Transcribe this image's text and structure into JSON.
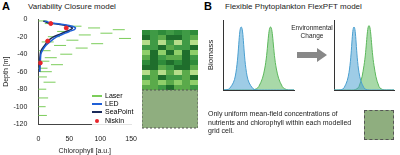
{
  "panels": [
    {
      "letter": "A",
      "title": "Variability Closure model"
    },
    {
      "letter": "B",
      "title": "Flexible Phytoplankton FlexPFT model"
    }
  ],
  "arrow_text": "Environmental Change",
  "caption": "Only uniform mean-field concentrations of nutrients and chlorophyll within each modelled grid cell.",
  "chart_data": [
    {
      "type": "scatter",
      "x_label": "Chlorophyll [a.u.]",
      "y_label": "Depth [m]",
      "xlim": [
        0,
        150
      ],
      "xticks": [
        0,
        50,
        100,
        150
      ],
      "ylim": [
        -120,
        0
      ],
      "yticks": [
        -120,
        -100,
        -80,
        -60,
        -40,
        -20,
        0
      ],
      "grid": false,
      "legend": "lower right",
      "series": [
        {
          "name": "Laser",
          "color": "#7ccd5a",
          "type": "scatter",
          "marker": "dash",
          "x": [
            5,
            20,
            60,
            90,
            130,
            40,
            110,
            75,
            25,
            140,
            55,
            15,
            95,
            35,
            70,
            10,
            45,
            20,
            8,
            30,
            5,
            12,
            4,
            18,
            3,
            6,
            2,
            4
          ],
          "y": [
            -2,
            -5,
            -8,
            -10,
            -12,
            -14,
            -16,
            -18,
            -20,
            -22,
            -24,
            -26,
            -28,
            -30,
            -33,
            -36,
            -40,
            -44,
            -48,
            -52,
            -56,
            -60,
            -66,
            -72,
            -80,
            -90,
            -100,
            -110
          ]
        },
        {
          "name": "LED",
          "color": "#1f5fd6",
          "type": "line",
          "line_style": "solid",
          "x": [
            10,
            20,
            40,
            55,
            60,
            58,
            50,
            40,
            30,
            20,
            12,
            7,
            4,
            3,
            2
          ],
          "y": [
            -2,
            -4,
            -6,
            -8,
            -10,
            -12,
            -14,
            -17,
            -20,
            -25,
            -30,
            -35,
            -40,
            -50,
            -60
          ]
        },
        {
          "name": "SeaPoint",
          "color": "#1a2a5a",
          "type": "line",
          "line_style": "solid",
          "x": [
            8,
            15,
            35,
            50,
            55,
            52,
            45,
            35,
            25,
            15,
            10,
            5,
            3,
            2,
            2
          ],
          "y": [
            -2,
            -4,
            -6,
            -8,
            -10,
            -12,
            -14,
            -17,
            -20,
            -25,
            -30,
            -35,
            -40,
            -50,
            -60
          ]
        },
        {
          "name": "Niskin",
          "color": "#e8242b",
          "type": "scatter",
          "marker": "circle",
          "x": [
            20,
            45,
            15,
            3
          ],
          "y": [
            -5,
            -10,
            -25,
            -50
          ]
        }
      ]
    },
    {
      "type": "line",
      "y_label": "Biomass",
      "tick_labels": false,
      "grid": false,
      "xlim": [
        0,
        12
      ],
      "ylim": [
        0,
        1
      ],
      "x": [
        0,
        1,
        2,
        3,
        4,
        5,
        6,
        7,
        8,
        9,
        10,
        11,
        12
      ],
      "series": [
        {
          "color": "#4a9fd0",
          "values": [
            0,
            0.02,
            0.2,
            0.9,
            0.2,
            0.02,
            0,
            0,
            0,
            0,
            0,
            0,
            0
          ]
        },
        {
          "color": "#5cb85c",
          "values": [
            0,
            0,
            0,
            0,
            0,
            0,
            0.05,
            0.3,
            0.9,
            0.3,
            0.05,
            0,
            0
          ]
        }
      ]
    },
    {
      "type": "line",
      "tick_labels": false,
      "grid": false,
      "xlim": [
        0,
        12
      ],
      "ylim": [
        0,
        1
      ],
      "x": [
        0,
        1,
        2,
        3,
        4,
        5,
        6,
        7,
        8,
        9,
        10,
        11,
        12
      ],
      "series": [
        {
          "color": "#4a9fd0",
          "values": [
            0,
            0,
            0.03,
            0.25,
            0.9,
            0.25,
            0.03,
            0,
            0,
            0,
            0,
            0,
            0
          ]
        },
        {
          "color": "#5cb85c",
          "values": [
            0,
            0,
            0,
            0,
            0,
            0.05,
            0.35,
            0.92,
            0.35,
            0.05,
            0,
            0,
            0
          ]
        }
      ]
    }
  ]
}
